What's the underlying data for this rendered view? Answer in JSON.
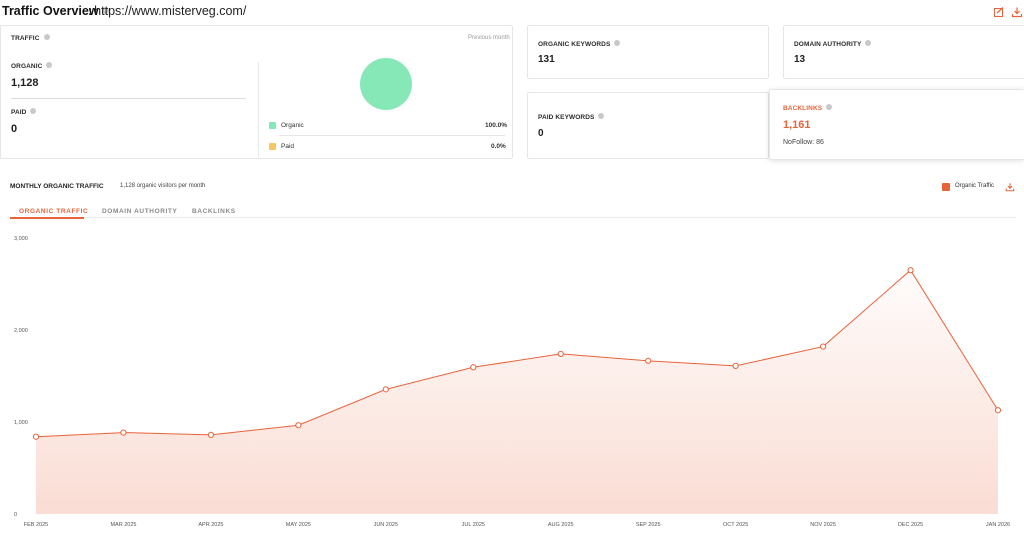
{
  "header": {
    "title": "Traffic Overview",
    "colon": ":",
    "url": "https://www.misterveg.com/",
    "icons": [
      "edit-icon",
      "download-icon"
    ]
  },
  "traffic": {
    "label": "TRAFFIC",
    "previous_month": "Previous month",
    "organic_label": "ORGANIC",
    "organic_value": "1,128",
    "paid_label": "PAID",
    "paid_value": "0",
    "legend": [
      {
        "name": "Organic",
        "pct": "100.0%",
        "color": "#86e8b7"
      },
      {
        "name": "Paid",
        "pct": "0.0%",
        "color": "#f6c762"
      }
    ]
  },
  "organic_keywords": {
    "label": "ORGANIC KEYWORDS",
    "value": "131"
  },
  "domain_authority": {
    "label": "DOMAIN AUTHORITY",
    "value": "13"
  },
  "paid_keywords": {
    "label": "PAID KEYWORDS",
    "value": "0"
  },
  "backlinks": {
    "label": "BACKLINKS",
    "value": "1,161",
    "nofollow": "NoFollow: 86"
  },
  "monthly": {
    "title": "MONTHLY ORGANIC TRAFFIC",
    "subtitle": "1,128 organic visitors per month",
    "legend_label": "Organic Traffic",
    "tabs": [
      "ORGANIC TRAFFIC",
      "DOMAIN AUTHORITY",
      "BACKLINKS"
    ]
  },
  "colors": {
    "accent": "#e8633a",
    "organic": "#86e8b7",
    "paid": "#f6c762"
  },
  "chart_data": {
    "type": "area",
    "title": "",
    "xlabel": "",
    "ylabel": "",
    "categories": [
      "FEB 2025",
      "MAR 2025",
      "APR 2025",
      "MAY 2025",
      "JUN 2025",
      "JUL 2025",
      "AUG 2025",
      "SEP 2025",
      "OCT 2025",
      "NOV 2025",
      "DEC 2025",
      "JAN 2026"
    ],
    "series": [
      {
        "name": "Organic Traffic",
        "values": [
          840,
          885,
          860,
          965,
          1355,
          1595,
          1740,
          1665,
          1610,
          1820,
          2650,
          1128
        ]
      }
    ],
    "yticks": [
      "0",
      "1,000",
      "2,000",
      "3,000"
    ],
    "ylim": [
      0,
      3000
    ],
    "grid": false,
    "legend": "top-right"
  }
}
